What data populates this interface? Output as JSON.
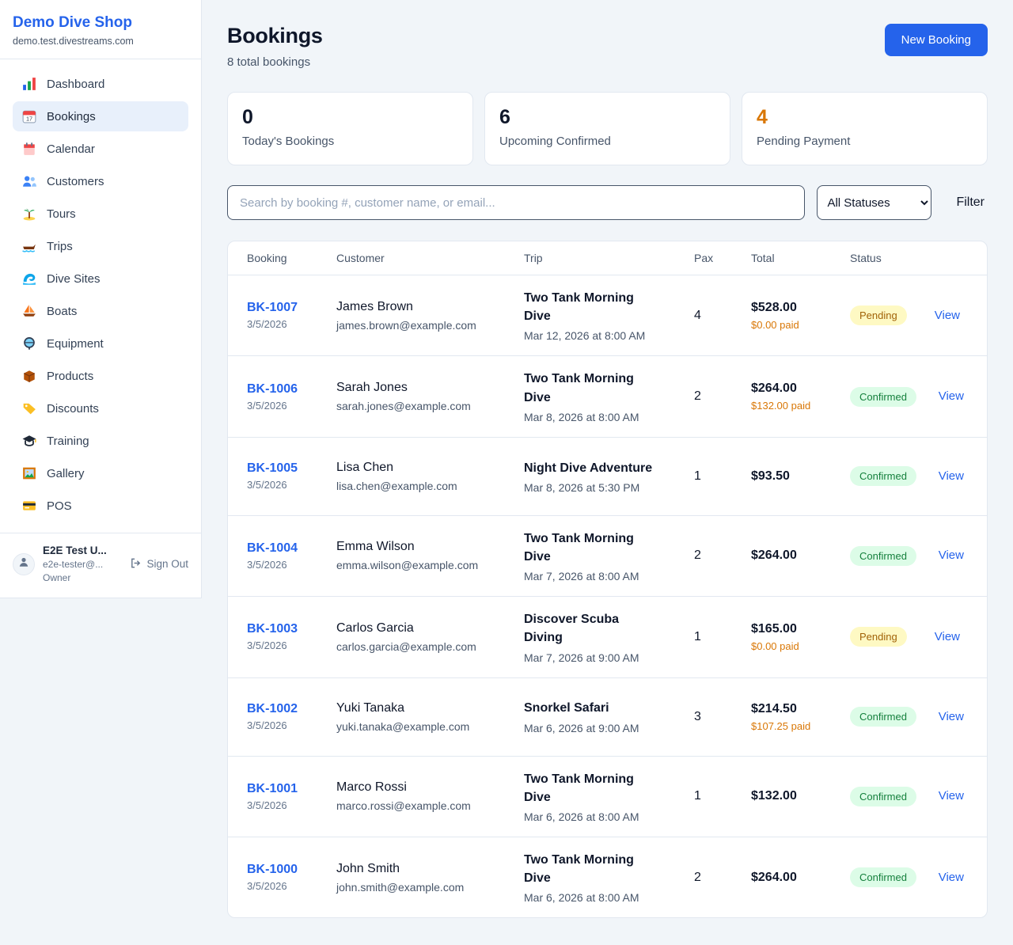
{
  "sidebar": {
    "brand": {
      "name": "Demo Dive Shop",
      "domain": "demo.test.divestreams.com"
    },
    "items": [
      {
        "label": "Dashboard",
        "icon": "dashboard-icon",
        "active": false
      },
      {
        "label": "Bookings",
        "icon": "bookings-icon",
        "active": true
      },
      {
        "label": "Calendar",
        "icon": "calendar-icon",
        "active": false
      },
      {
        "label": "Customers",
        "icon": "customers-icon",
        "active": false
      },
      {
        "label": "Tours",
        "icon": "tours-icon",
        "active": false
      },
      {
        "label": "Trips",
        "icon": "trips-icon",
        "active": false
      },
      {
        "label": "Dive Sites",
        "icon": "dive-sites-icon",
        "active": false
      },
      {
        "label": "Boats",
        "icon": "boats-icon",
        "active": false
      },
      {
        "label": "Equipment",
        "icon": "equipment-icon",
        "active": false
      },
      {
        "label": "Products",
        "icon": "products-icon",
        "active": false
      },
      {
        "label": "Discounts",
        "icon": "discounts-icon",
        "active": false
      },
      {
        "label": "Training",
        "icon": "training-icon",
        "active": false
      },
      {
        "label": "Gallery",
        "icon": "gallery-icon",
        "active": false
      },
      {
        "label": "POS",
        "icon": "pos-icon",
        "active": false
      }
    ],
    "user": {
      "name": "E2E Test U...",
      "email": "e2e-tester@...",
      "role": "Owner",
      "signout_label": "Sign Out"
    }
  },
  "header": {
    "title": "Bookings",
    "subtitle": "8 total bookings",
    "new_booking_label": "New Booking"
  },
  "stats": [
    {
      "value": "0",
      "label": "Today's Bookings",
      "color": "#0f172a"
    },
    {
      "value": "6",
      "label": "Upcoming Confirmed",
      "color": "#0f172a"
    },
    {
      "value": "4",
      "label": "Pending Payment",
      "color": "#d97706"
    }
  ],
  "filters": {
    "search_placeholder": "Search by booking #, customer name, or email...",
    "status_select_value": "All Statuses",
    "filter_label": "Filter"
  },
  "table": {
    "columns": [
      "Booking",
      "Customer",
      "Trip",
      "Pax",
      "Total",
      "Status"
    ],
    "rows": [
      {
        "id": "BK-1007",
        "date": "3/5/2026",
        "customer": "James Brown",
        "email": "james.brown@example.com",
        "trip": "Two Tank Morning Dive",
        "trip_time": "Mar 12, 2026 at 8:00 AM",
        "pax": "4",
        "total": "$528.00",
        "paid": "$0.00 paid",
        "status": "Pending",
        "view_label": "View"
      },
      {
        "id": "BK-1006",
        "date": "3/5/2026",
        "customer": "Sarah Jones",
        "email": "sarah.jones@example.com",
        "trip": "Two Tank Morning Dive",
        "trip_time": "Mar 8, 2026 at 8:00 AM",
        "pax": "2",
        "total": "$264.00",
        "paid": "$132.00 paid",
        "status": "Confirmed",
        "view_label": "View"
      },
      {
        "id": "BK-1005",
        "date": "3/5/2026",
        "customer": "Lisa Chen",
        "email": "lisa.chen@example.com",
        "trip": "Night Dive Adventure",
        "trip_time": "Mar 8, 2026 at 5:30 PM",
        "pax": "1",
        "total": "$93.50",
        "paid": "",
        "status": "Confirmed",
        "view_label": "View"
      },
      {
        "id": "BK-1004",
        "date": "3/5/2026",
        "customer": "Emma Wilson",
        "email": "emma.wilson@example.com",
        "trip": "Two Tank Morning Dive",
        "trip_time": "Mar 7, 2026 at 8:00 AM",
        "pax": "2",
        "total": "$264.00",
        "paid": "",
        "status": "Confirmed",
        "view_label": "View"
      },
      {
        "id": "BK-1003",
        "date": "3/5/2026",
        "customer": "Carlos Garcia",
        "email": "carlos.garcia@example.com",
        "trip": "Discover Scuba Diving",
        "trip_time": "Mar 7, 2026 at 9:00 AM",
        "pax": "1",
        "total": "$165.00",
        "paid": "$0.00 paid",
        "status": "Pending",
        "view_label": "View"
      },
      {
        "id": "BK-1002",
        "date": "3/5/2026",
        "customer": "Yuki Tanaka",
        "email": "yuki.tanaka@example.com",
        "trip": "Snorkel Safari",
        "trip_time": "Mar 6, 2026 at 9:00 AM",
        "pax": "3",
        "total": "$214.50",
        "paid": "$107.25 paid",
        "status": "Confirmed",
        "view_label": "View"
      },
      {
        "id": "BK-1001",
        "date": "3/5/2026",
        "customer": "Marco Rossi",
        "email": "marco.rossi@example.com",
        "trip": "Two Tank Morning Dive",
        "trip_time": "Mar 6, 2026 at 8:00 AM",
        "pax": "1",
        "total": "$132.00",
        "paid": "",
        "status": "Confirmed",
        "view_label": "View"
      },
      {
        "id": "BK-1000",
        "date": "3/5/2026",
        "customer": "John Smith",
        "email": "john.smith@example.com",
        "trip": "Two Tank Morning Dive",
        "trip_time": "Mar 6, 2026 at 8:00 AM",
        "pax": "2",
        "total": "$264.00",
        "paid": "",
        "status": "Confirmed",
        "view_label": "View"
      }
    ]
  }
}
